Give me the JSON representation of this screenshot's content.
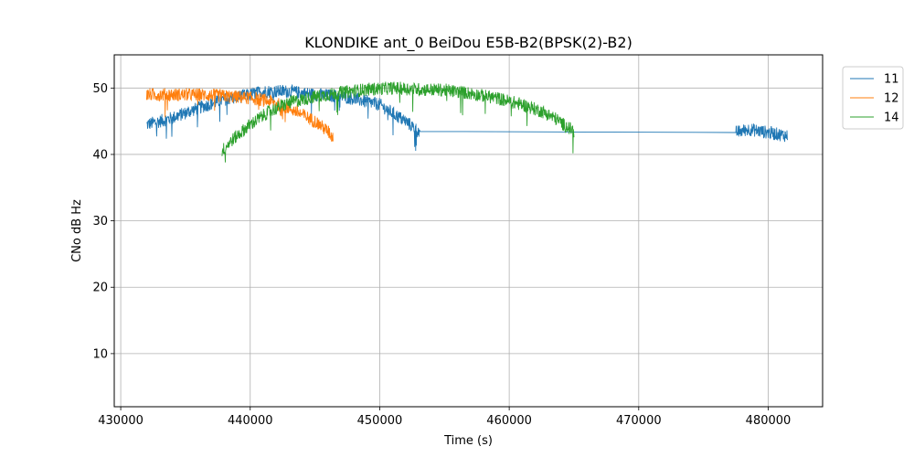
{
  "chart_data": {
    "type": "line",
    "title": "KLONDIKE ant_0 BeiDou E5B-B2(BPSK(2)-B2)",
    "xlabel": "Time (s)",
    "ylabel": "CNo dB Hz",
    "xlim": [
      429500,
      484200
    ],
    "ylim": [
      2,
      55
    ],
    "xticks": [
      430000,
      440000,
      450000,
      460000,
      470000,
      480000
    ],
    "xtick_labels": [
      "430000",
      "440000",
      "450000",
      "460000",
      "470000",
      "480000"
    ],
    "yticks": [
      10,
      20,
      30,
      40,
      50
    ],
    "ytick_labels": [
      "10",
      "20",
      "30",
      "40",
      "50"
    ],
    "grid": true,
    "legend_position": "outside-top-right",
    "series": [
      {
        "name": "11",
        "color": "#1f77b4",
        "points": [
          [
            432000,
            44.5
          ],
          [
            434000,
            45.5
          ],
          [
            436000,
            47.0
          ],
          [
            438000,
            48.3
          ],
          [
            440000,
            49.0
          ],
          [
            441000,
            49.5
          ],
          [
            443000,
            49.5
          ],
          [
            445000,
            49.0
          ],
          [
            447000,
            48.8
          ],
          [
            448500,
            48.2
          ],
          [
            450000,
            47.5
          ],
          [
            451000,
            46.2
          ],
          [
            452000,
            45.0
          ],
          [
            453000,
            43.5
          ],
          [
            453100,
            42.6
          ],
          [
            460000,
            42.9
          ],
          [
            470000,
            43.1
          ],
          [
            477500,
            43.3
          ],
          [
            478500,
            43.8
          ],
          [
            480000,
            43.3
          ],
          [
            481500,
            42.8
          ]
        ],
        "noise": 1.0,
        "gaps": [
          [
            453100,
            477500
          ]
        ]
      },
      {
        "name": "12",
        "color": "#ff7f0e",
        "points": [
          [
            432000,
            49.0
          ],
          [
            434000,
            49.0
          ],
          [
            436000,
            49.0
          ],
          [
            438000,
            48.8
          ],
          [
            440000,
            48.5
          ],
          [
            441500,
            48.0
          ],
          [
            443000,
            47.0
          ],
          [
            444000,
            46.0
          ],
          [
            445000,
            45.0
          ],
          [
            446000,
            43.5
          ],
          [
            446400,
            42.5
          ]
        ],
        "noise": 1.0,
        "gaps": []
      },
      {
        "name": "14",
        "color": "#2ca02c",
        "points": [
          [
            437800,
            40.5
          ],
          [
            438500,
            42.0
          ],
          [
            440000,
            44.5
          ],
          [
            441500,
            46.5
          ],
          [
            443000,
            47.8
          ],
          [
            445000,
            48.7
          ],
          [
            447000,
            49.3
          ],
          [
            449000,
            49.8
          ],
          [
            451000,
            50.0
          ],
          [
            453000,
            49.8
          ],
          [
            455000,
            49.7
          ],
          [
            457000,
            49.2
          ],
          [
            459000,
            48.5
          ],
          [
            461000,
            47.5
          ],
          [
            462500,
            46.5
          ],
          [
            463500,
            45.5
          ],
          [
            464200,
            44.5
          ],
          [
            465000,
            43.5
          ]
        ],
        "noise": 1.0,
        "gaps": []
      }
    ]
  }
}
